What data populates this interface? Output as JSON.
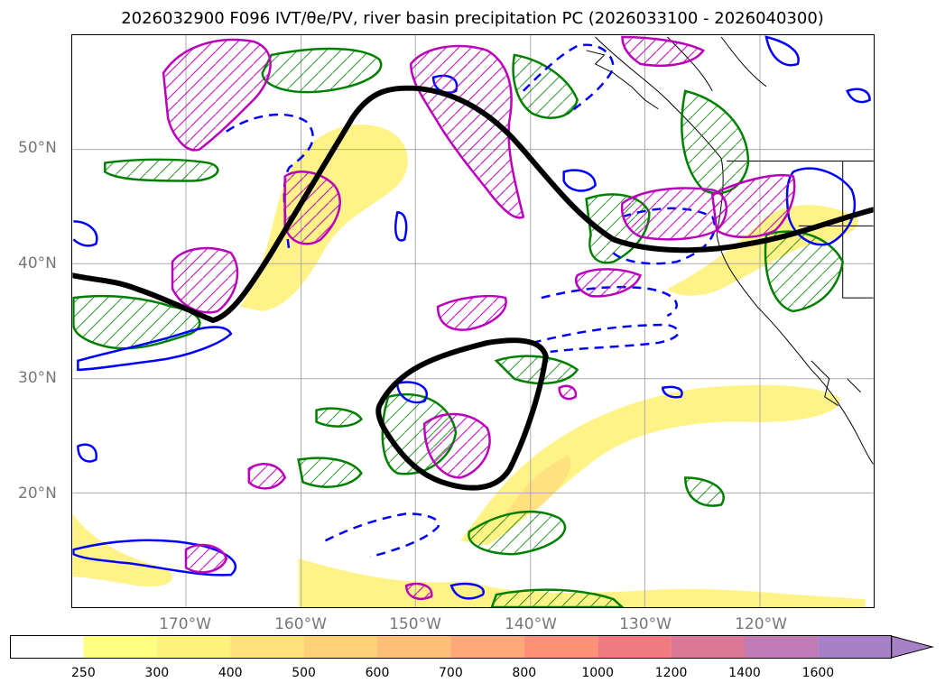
{
  "title": "2026032900 F096 IVT/θe/PV, river basin precipitation PC (2026033100 - 2026040300)",
  "map": {
    "lat_labels": [
      "50°N",
      "40°N",
      "30°N",
      "20°N"
    ],
    "lon_labels": [
      "170°W",
      "160°W",
      "150°W",
      "140°W",
      "130°W",
      "120°W"
    ]
  },
  "colorbar": {
    "ticks": [
      "250",
      "300",
      "400",
      "500",
      "600",
      "700",
      "800",
      "1000",
      "1200",
      "1400",
      "1600"
    ],
    "colors": [
      "#ffffff",
      "#ffff80",
      "#fff27a",
      "#ffe27a",
      "#ffd278",
      "#ffbf78",
      "#ffa878",
      "#ff9078",
      "#f07a80",
      "#d87896",
      "#c07ab6",
      "#a880c8"
    ]
  },
  "contour_colors": {
    "ivt_fill": "#fff27a",
    "theta_e": "#008000",
    "pv": "#0000ff",
    "precip_pc": "#bb00bb",
    "jet_axis": "#000000"
  }
}
